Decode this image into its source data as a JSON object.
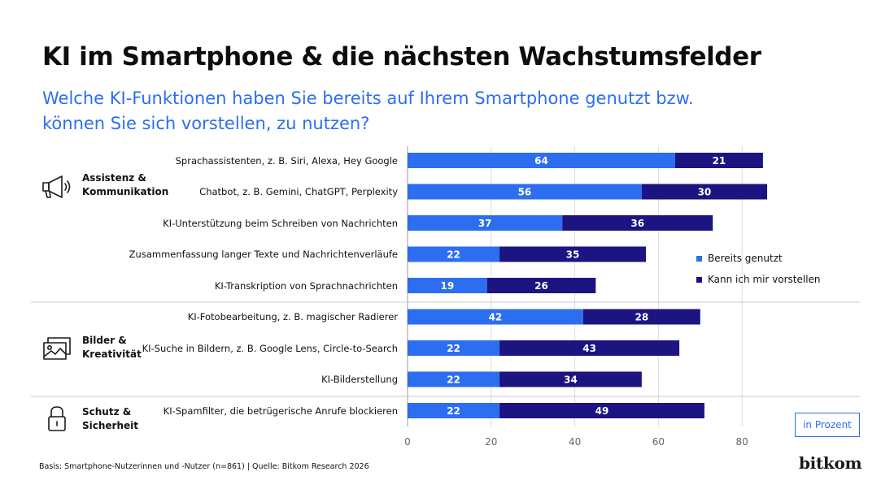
{
  "title": "KI im Smartphone & die nächsten Wachstumsfelder",
  "subtitle": "Welche KI-Funktionen haben Sie bereits auf Ihrem Smartphone genutzt bzw. können Sie sich vorstellen, zu nutzen?",
  "categories": [
    {
      "label": "Assistenz & Kommunikation",
      "icon": "megaphone-icon"
    },
    {
      "label": "Bilder & Kreativität",
      "icon": "image-icon"
    },
    {
      "label": "Schutz & Sicherheit",
      "icon": "lock-icon"
    }
  ],
  "unit_label": "in Prozent",
  "footnote": "Basis: Smartphone-Nutzerinnen und -Nutzer (n=861) | Quelle: Bitkom Research 2026",
  "brand": "bitkom",
  "colors": {
    "used": "#2d6ef0",
    "imagine": "#1c1480",
    "title": "#0d0d0d",
    "subtitle": "#2d6ef0",
    "grid": "#dcdcdc",
    "divider": "#c9c9c9"
  },
  "chart_data": {
    "type": "bar",
    "orientation": "horizontal",
    "stacked": true,
    "categories": [
      "Sprachassistenten, z. B. Siri, Alexa, Hey Google",
      "Chatbot, z. B. Gemini, ChatGPT, Perplexity",
      "KI-Unterstützung beim Schreiben von Nachrichten",
      "Zusammenfassung langer Texte und Nachrichtenverläufe",
      "KI-Transkription von Sprachnachrichten",
      "KI-Fotobearbeitung, z. B. magischer Radierer",
      "KI-Suche in Bildern, z. B. Google Lens, Circle-to-Search",
      "KI-Bilderstellung",
      "KI-Spamfilter, die betrügerische Anrufe blockieren"
    ],
    "groups": [
      {
        "category": "Assistenz & Kommunikation",
        "items": [
          0,
          1,
          2,
          3,
          4
        ]
      },
      {
        "category": "Bilder & Kreativität",
        "items": [
          5,
          6,
          7
        ]
      },
      {
        "category": "Schutz & Sicherheit",
        "items": [
          8
        ]
      }
    ],
    "series": [
      {
        "name": "Bereits genutzt",
        "color": "#2d6ef0",
        "values": [
          64,
          56,
          37,
          22,
          19,
          42,
          22,
          22,
          22
        ]
      },
      {
        "name": "Kann ich mir vorstellen",
        "color": "#1c1480",
        "values": [
          21,
          30,
          36,
          35,
          26,
          28,
          43,
          34,
          49
        ]
      }
    ],
    "xlim": [
      0,
      85
    ],
    "xticks": [
      0,
      20,
      40,
      60,
      80
    ],
    "grid": true,
    "legend_position": "right"
  }
}
